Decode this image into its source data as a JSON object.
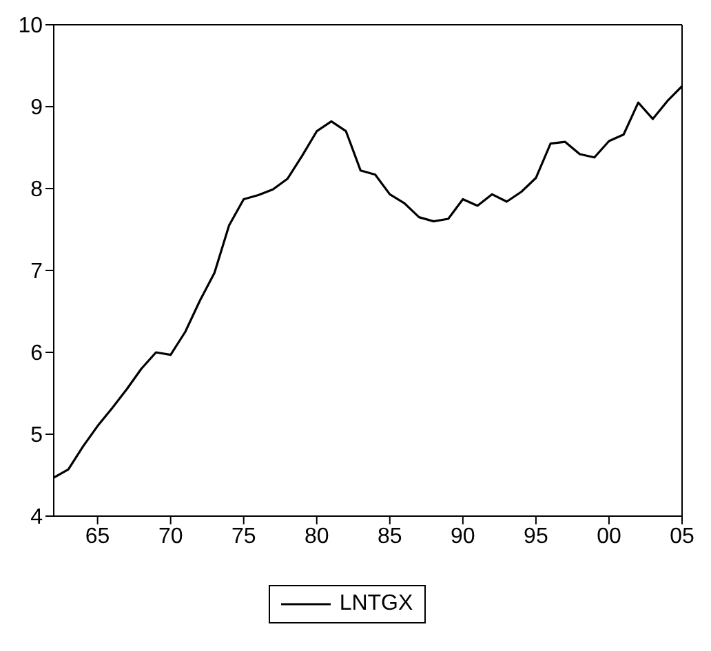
{
  "chart_data": {
    "type": "line",
    "x": [
      1962,
      1963,
      1964,
      1965,
      1966,
      1967,
      1968,
      1969,
      1970,
      1971,
      1972,
      1973,
      1974,
      1975,
      1976,
      1977,
      1978,
      1979,
      1980,
      1981,
      1982,
      1983,
      1984,
      1985,
      1986,
      1987,
      1988,
      1989,
      1990,
      1991,
      1992,
      1993,
      1994,
      1995,
      1996,
      1997,
      1998,
      1999,
      2000,
      2001,
      2002,
      2003,
      2004,
      2005
    ],
    "series": [
      {
        "name": "LNTGX",
        "color": "#000000",
        "values": [
          4.47,
          4.57,
          4.85,
          5.1,
          5.32,
          5.55,
          5.8,
          6.0,
          5.97,
          6.25,
          6.63,
          6.97,
          7.55,
          7.87,
          7.92,
          7.99,
          8.12,
          8.4,
          8.7,
          8.82,
          8.7,
          8.22,
          8.17,
          7.93,
          7.82,
          7.65,
          7.6,
          7.63,
          7.87,
          7.79,
          7.93,
          7.84,
          7.96,
          8.13,
          8.55,
          8.57,
          8.42,
          8.38,
          8.58,
          8.66,
          9.05,
          8.85,
          9.07,
          9.25
        ]
      }
    ],
    "xlim": [
      1962,
      2005
    ],
    "xticks": [
      {
        "value": 1965,
        "label": "65"
      },
      {
        "value": 1970,
        "label": "70"
      },
      {
        "value": 1975,
        "label": "75"
      },
      {
        "value": 1980,
        "label": "80"
      },
      {
        "value": 1985,
        "label": "85"
      },
      {
        "value": 1990,
        "label": "90"
      },
      {
        "value": 1995,
        "label": "95"
      },
      {
        "value": 2000,
        "label": "00"
      },
      {
        "value": 2005,
        "label": "05"
      }
    ],
    "ylim": [
      4,
      10
    ],
    "yticks": [
      4,
      5,
      6,
      7,
      8,
      9,
      10
    ],
    "legend": "bottom",
    "grid": false,
    "marker": "none",
    "line_style": "solid"
  }
}
